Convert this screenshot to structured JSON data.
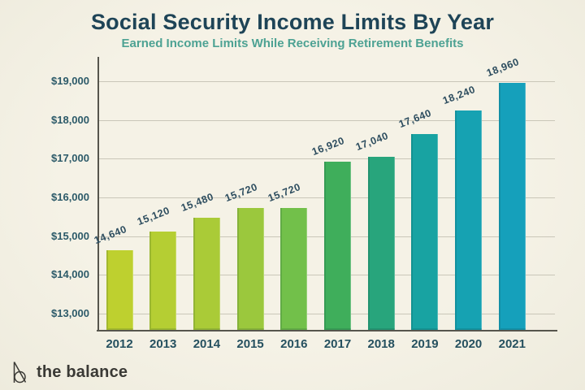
{
  "chart_data": {
    "type": "bar",
    "title": "Social Security Income Limits By Year",
    "subtitle": "Earned Income Limits While Receiving Retirement Benefits",
    "categories": [
      "2012",
      "2013",
      "2014",
      "2015",
      "2016",
      "2017",
      "2018",
      "2019",
      "2020",
      "2021"
    ],
    "values": [
      14640,
      15120,
      15480,
      15720,
      15720,
      16920,
      17040,
      17640,
      18240,
      18960
    ],
    "bar_labels": [
      "14,640",
      "15,120",
      "15,480",
      "15,720",
      "15,720",
      "16,920",
      "17,040",
      "17,640",
      "18,240",
      "18,960"
    ],
    "bar_colors": [
      "#bed02f",
      "#b5ce33",
      "#aacb37",
      "#9bc83d",
      "#72c04a",
      "#3fae5b",
      "#28a57c",
      "#18a3a2",
      "#16a2b2",
      "#15a0bb"
    ],
    "xlabel": "",
    "ylabel": "",
    "ylim": [
      12580,
      19000
    ],
    "yticks": [
      13000,
      14000,
      15000,
      16000,
      17000,
      18000,
      19000
    ],
    "ytick_labels": [
      "$13,000",
      "$14,000",
      "$15,000",
      "$16,000",
      "$17,000",
      "$18,000",
      "$19,000"
    ],
    "grid": true,
    "legend": false,
    "value_label_rotation_deg": -21
  },
  "logo": {
    "text": "the balance",
    "icon": "the-balance-b-icon"
  },
  "colors": {
    "background": "#f3f0e4",
    "title_text": "#1e4457",
    "subtitle_text": "#4da293",
    "y_axis_text": "#2c5a69",
    "x_axis_text": "#25505f",
    "value_label_text": "#2d4d5f",
    "gridline": "#c9c6b8",
    "axis_line": "#56554d",
    "logo_text": "#3a3935"
  }
}
